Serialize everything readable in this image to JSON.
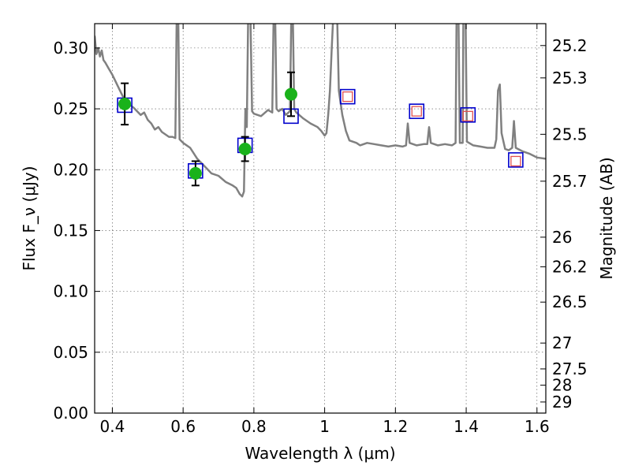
{
  "chart_data": {
    "type": "scatter",
    "xlabel": "Wavelength λ (μm)",
    "ylabel": "Flux F_ν (μJy)",
    "ylabel_right": "Magnitude (AB)",
    "xlim": [
      0.35,
      1.625
    ],
    "ylim": [
      0.0,
      0.32
    ],
    "grid": true,
    "x_ticks": [
      {
        "value": 0.4,
        "label": "0.4"
      },
      {
        "value": 0.6,
        "label": "0.6"
      },
      {
        "value": 0.8,
        "label": "0.8"
      },
      {
        "value": 1.0,
        "label": "1"
      },
      {
        "value": 1.2,
        "label": "1.2"
      },
      {
        "value": 1.4,
        "label": "1.4"
      },
      {
        "value": 1.6,
        "label": "1.6"
      }
    ],
    "y_ticks": [
      {
        "value": 0.0,
        "label": "0.00"
      },
      {
        "value": 0.05,
        "label": "0.05"
      },
      {
        "value": 0.1,
        "label": "0.10"
      },
      {
        "value": 0.15,
        "label": "0.15"
      },
      {
        "value": 0.2,
        "label": "0.20"
      },
      {
        "value": 0.25,
        "label": "0.25"
      },
      {
        "value": 0.3,
        "label": "0.30"
      }
    ],
    "right_ticks": [
      {
        "mag": 25.2,
        "label": "25.2"
      },
      {
        "mag": 25.3,
        "label": "25.3"
      },
      {
        "mag": 25.5,
        "label": "25.5"
      },
      {
        "mag": 25.7,
        "label": "25.7"
      },
      {
        "mag": 26.0,
        "label": "26"
      },
      {
        "mag": 26.2,
        "label": "26.2"
      },
      {
        "mag": 26.5,
        "label": "26.5"
      },
      {
        "mag": 27.0,
        "label": "27"
      },
      {
        "mag": 27.5,
        "label": "27.5"
      },
      {
        "mag": 28.0,
        "label": "28"
      },
      {
        "mag": 29.0,
        "label": "29"
      }
    ],
    "model_color": "#808080",
    "model_spectrum": [
      [
        0.35,
        0.31
      ],
      [
        0.355,
        0.295
      ],
      [
        0.36,
        0.3
      ],
      [
        0.365,
        0.293
      ],
      [
        0.37,
        0.298
      ],
      [
        0.375,
        0.29
      ],
      [
        0.38,
        0.288
      ],
      [
        0.39,
        0.283
      ],
      [
        0.4,
        0.278
      ],
      [
        0.41,
        0.272
      ],
      [
        0.42,
        0.266
      ],
      [
        0.43,
        0.26
      ],
      [
        0.44,
        0.256
      ],
      [
        0.45,
        0.253
      ],
      [
        0.46,
        0.251
      ],
      [
        0.47,
        0.248
      ],
      [
        0.48,
        0.245
      ],
      [
        0.49,
        0.247
      ],
      [
        0.5,
        0.241
      ],
      [
        0.51,
        0.238
      ],
      [
        0.52,
        0.233
      ],
      [
        0.53,
        0.235
      ],
      [
        0.54,
        0.231
      ],
      [
        0.55,
        0.229
      ],
      [
        0.56,
        0.227
      ],
      [
        0.57,
        0.227
      ],
      [
        0.578,
        0.226
      ],
      [
        0.582,
        0.33
      ],
      [
        0.586,
        0.33
      ],
      [
        0.59,
        0.225
      ],
      [
        0.6,
        0.222
      ],
      [
        0.62,
        0.218
      ],
      [
        0.64,
        0.209
      ],
      [
        0.66,
        0.203
      ],
      [
        0.68,
        0.197
      ],
      [
        0.7,
        0.195
      ],
      [
        0.72,
        0.19
      ],
      [
        0.74,
        0.187
      ],
      [
        0.75,
        0.185
      ],
      [
        0.76,
        0.18
      ],
      [
        0.767,
        0.178
      ],
      [
        0.772,
        0.182
      ],
      [
        0.776,
        0.25
      ],
      [
        0.78,
        0.235
      ],
      [
        0.784,
        0.33
      ],
      [
        0.79,
        0.33
      ],
      [
        0.795,
        0.248
      ],
      [
        0.8,
        0.246
      ],
      [
        0.82,
        0.244
      ],
      [
        0.84,
        0.249
      ],
      [
        0.852,
        0.247
      ],
      [
        0.856,
        0.33
      ],
      [
        0.86,
        0.33
      ],
      [
        0.864,
        0.25
      ],
      [
        0.87,
        0.248
      ],
      [
        0.88,
        0.25
      ],
      [
        0.89,
        0.245
      ],
      [
        0.902,
        0.248
      ],
      [
        0.906,
        0.33
      ],
      [
        0.91,
        0.33
      ],
      [
        0.914,
        0.25
      ],
      [
        0.92,
        0.247
      ],
      [
        0.94,
        0.242
      ],
      [
        0.96,
        0.238
      ],
      [
        0.98,
        0.235
      ],
      [
        0.99,
        0.232
      ],
      [
        1.0,
        0.228
      ],
      [
        1.005,
        0.23
      ],
      [
        1.01,
        0.245
      ],
      [
        1.015,
        0.265
      ],
      [
        1.02,
        0.3
      ],
      [
        1.025,
        0.33
      ],
      [
        1.035,
        0.33
      ],
      [
        1.04,
        0.265
      ],
      [
        1.05,
        0.245
      ],
      [
        1.06,
        0.232
      ],
      [
        1.07,
        0.224
      ],
      [
        1.09,
        0.222
      ],
      [
        1.1,
        0.22
      ],
      [
        1.12,
        0.222
      ],
      [
        1.14,
        0.221
      ],
      [
        1.16,
        0.22
      ],
      [
        1.18,
        0.219
      ],
      [
        1.2,
        0.22
      ],
      [
        1.22,
        0.219
      ],
      [
        1.23,
        0.22
      ],
      [
        1.235,
        0.238
      ],
      [
        1.24,
        0.222
      ],
      [
        1.26,
        0.22
      ],
      [
        1.28,
        0.221
      ],
      [
        1.29,
        0.221
      ],
      [
        1.295,
        0.235
      ],
      [
        1.3,
        0.222
      ],
      [
        1.32,
        0.22
      ],
      [
        1.34,
        0.221
      ],
      [
        1.36,
        0.22
      ],
      [
        1.37,
        0.222
      ],
      [
        1.373,
        0.33
      ],
      [
        1.378,
        0.33
      ],
      [
        1.382,
        0.222
      ],
      [
        1.39,
        0.222
      ],
      [
        1.392,
        0.33
      ],
      [
        1.398,
        0.33
      ],
      [
        1.402,
        0.223
      ],
      [
        1.42,
        0.22
      ],
      [
        1.44,
        0.219
      ],
      [
        1.46,
        0.218
      ],
      [
        1.48,
        0.218
      ],
      [
        1.485,
        0.225
      ],
      [
        1.49,
        0.265
      ],
      [
        1.495,
        0.27
      ],
      [
        1.5,
        0.23
      ],
      [
        1.51,
        0.217
      ],
      [
        1.52,
        0.216
      ],
      [
        1.53,
        0.218
      ],
      [
        1.535,
        0.24
      ],
      [
        1.54,
        0.218
      ],
      [
        1.56,
        0.215
      ],
      [
        1.58,
        0.213
      ],
      [
        1.6,
        0.21
      ],
      [
        1.625,
        0.209
      ]
    ],
    "observed_points": [
      {
        "x": 0.435,
        "y": 0.254,
        "yerr": 0.017
      },
      {
        "x": 0.635,
        "y": 0.197,
        "yerr": 0.01
      },
      {
        "x": 0.775,
        "y": 0.217,
        "yerr": 0.01
      },
      {
        "x": 0.905,
        "y": 0.262,
        "yerr": 0.018
      }
    ],
    "model_points": [
      {
        "x": 0.435,
        "y": 0.253
      },
      {
        "x": 0.635,
        "y": 0.199
      },
      {
        "x": 0.775,
        "y": 0.22
      },
      {
        "x": 0.905,
        "y": 0.244
      },
      {
        "x": 1.065,
        "y": 0.26
      },
      {
        "x": 1.26,
        "y": 0.248
      },
      {
        "x": 1.405,
        "y": 0.245
      },
      {
        "x": 1.54,
        "y": 0.208
      }
    ],
    "predicted_points": [
      {
        "x": 1.065,
        "y": 0.26
      },
      {
        "x": 1.26,
        "y": 0.248
      },
      {
        "x": 1.405,
        "y": 0.244
      },
      {
        "x": 1.54,
        "y": 0.207
      }
    ],
    "colors": {
      "observed": "#1ab21a",
      "errorbar": "#000000",
      "model_box": "#0000cc",
      "predicted_box": "#e05050"
    }
  }
}
